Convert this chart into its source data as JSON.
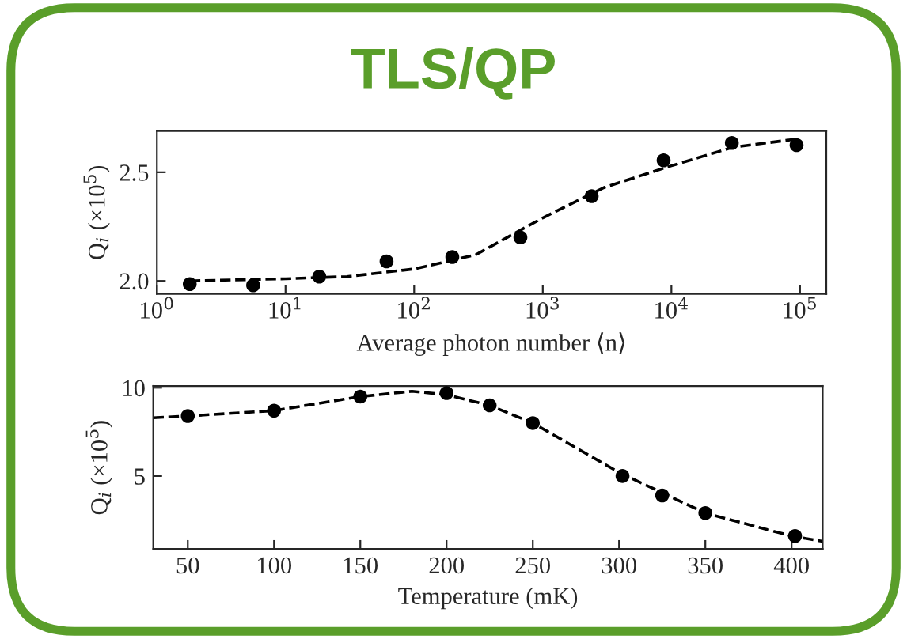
{
  "chart_data": [
    {
      "type": "scatter",
      "title": "TLS/QP",
      "xlabel": "Average photon number ⟨n⟩",
      "ylabel": "Q$_{i}$ (×10$^{5}$)",
      "log": "x",
      "grid": false,
      "legend": false,
      "xlim": [
        1,
        160000
      ],
      "ylim": [
        1.94,
        2.69
      ],
      "xticks": [
        {
          "value": 1,
          "label": "10$^{0}$"
        },
        {
          "value": 10,
          "label": "10$^{1}$"
        },
        {
          "value": 100,
          "label": "10$^{2}$"
        },
        {
          "value": 1000,
          "label": "10$^{3}$"
        },
        {
          "value": 10000,
          "label": "10$^{4}$"
        },
        {
          "value": 100000,
          "label": "10$^{5}$"
        }
      ],
      "yticks": [
        {
          "value": 2,
          "label": "2.0"
        },
        2.5
      ],
      "series": [
        {
          "color": "#000000",
          "marker": "circle",
          "x": [
            1.8,
            5.6,
            18.3,
            61,
            198,
            670,
            2400,
            8700,
            29500,
            94000
          ],
          "values": [
            1.985,
            1.98,
            2.02,
            2.09,
            2.11,
            2.2,
            2.39,
            2.555,
            2.635,
            2.625
          ]
        },
        {
          "type": "line",
          "color": "#000000",
          "marker": "none",
          "line_style": "dashed",
          "x": [
            1.8,
            10,
            30,
            100,
            300,
            1000,
            3000,
            10000,
            30000,
            100000
          ],
          "values": [
            2.0,
            2.01,
            2.02,
            2.055,
            2.12,
            2.29,
            2.43,
            2.53,
            2.615,
            2.655
          ]
        }
      ]
    },
    {
      "type": "scatter",
      "xlabel": "Temperature (mK)",
      "ylabel": "Q$_{i}$ (×10$^{5}$)",
      "grid": false,
      "legend": false,
      "xlim": [
        30,
        418
      ],
      "ylim": [
        0.87,
        10.1
      ],
      "xticks": [
        50,
        100,
        150,
        200,
        250,
        300,
        350,
        400
      ],
      "yticks": [
        5,
        10
      ],
      "series": [
        {
          "color": "#000000",
          "marker": "circle",
          "x": [
            50,
            100,
            150,
            200,
            225,
            250,
            302,
            325,
            350,
            402
          ],
          "values": [
            8.4,
            8.7,
            9.5,
            9.7,
            9.0,
            8.0,
            5.0,
            3.9,
            2.9,
            1.6
          ]
        },
        {
          "type": "line",
          "color": "#000000",
          "marker": "none",
          "line_style": "dashed",
          "x": [
            30,
            50,
            100,
            150,
            180,
            200,
            225,
            250,
            300,
            350,
            400,
            418
          ],
          "values": [
            8.3,
            8.4,
            8.7,
            9.5,
            9.8,
            9.6,
            9.0,
            8.0,
            5.2,
            2.9,
            1.6,
            1.3
          ]
        }
      ]
    }
  ]
}
